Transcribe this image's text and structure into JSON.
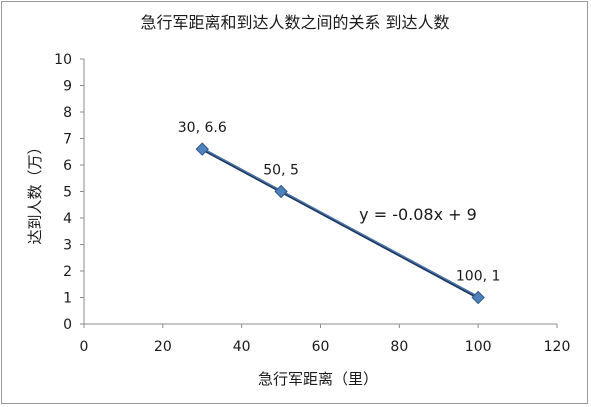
{
  "chart_data": {
    "type": "scatter",
    "title": "急行军距离和到达人数之间的关系 到达人数",
    "xlabel": "急行军距离（里）",
    "ylabel": "达到人数（万）",
    "xlim": [
      0,
      120
    ],
    "ylim": [
      0,
      10
    ],
    "x_ticks": [
      "0",
      "20",
      "40",
      "60",
      "80",
      "100",
      "120"
    ],
    "y_ticks": [
      "0",
      "1",
      "2",
      "3",
      "4",
      "5",
      "6",
      "7",
      "8",
      "9",
      "10"
    ],
    "grid": false,
    "legend": "none",
    "points": [
      {
        "x": 30,
        "y": 6.6,
        "label": "30, 6.6"
      },
      {
        "x": 50,
        "y": 5,
        "label": "50, 5"
      },
      {
        "x": 100,
        "y": 1,
        "label": "100, 1"
      }
    ],
    "trendline": {
      "type": "linear",
      "equation": "y = -0.08x + 9",
      "slope": -0.08,
      "intercept": 9,
      "x_range": [
        30,
        100
      ]
    },
    "colors": {
      "marker": "#4f81bd",
      "marker_edge": "#2f5a8e",
      "trendline": "#1f3a60",
      "axis": "#8c8c8c"
    }
  }
}
